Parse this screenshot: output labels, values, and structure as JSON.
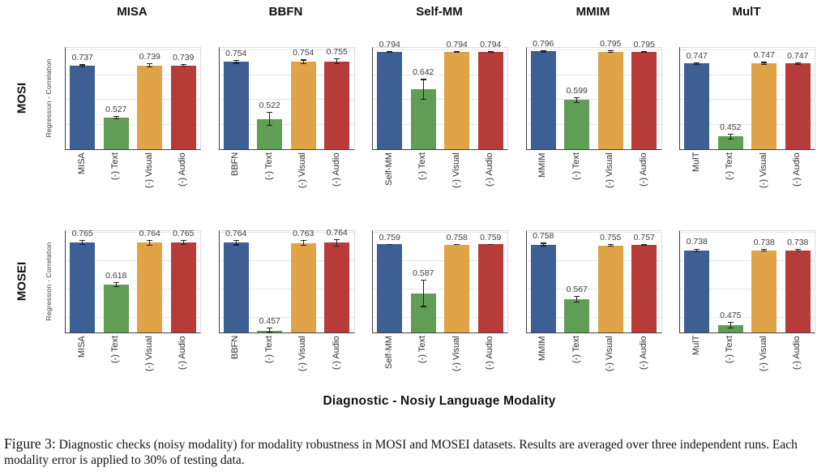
{
  "caption": {
    "label": "Figure 3:",
    "text": " Diagnostic checks (noisy modality) for modality robustness in MOSI and MOSEI datasets. Results are averaged over three independent runs. Each modality error is applied to 30% of testing data."
  },
  "colors": {
    "bar_blue": "#3d5f93",
    "bar_green": "#5f9e54",
    "bar_orange": "#e0a348",
    "bar_red": "#b73b39",
    "gridline": "#e7e7e7",
    "spine": "#404040",
    "value_label": "#3d3d3d",
    "tick_label": "#2e2e2e"
  },
  "chart_data": {
    "type": "bar",
    "xlabel": "Diagnostic - Nosiy Language Modality",
    "ylabel": "Regression - Correlation",
    "grid": true,
    "gridline_values": [
      0.5,
      0.6,
      0.7,
      0.8
    ],
    "legend_position": "none",
    "bar_colors": [
      "#3d5f93",
      "#5f9e54",
      "#e0a348",
      "#b73b39"
    ],
    "columns": [
      "MISA",
      "BBFN",
      "Self-MM",
      "MMIM",
      "MulT"
    ],
    "rows": [
      {
        "dataset": "MOSI",
        "ylim": [
          0.4,
          0.81
        ],
        "panels": [
          {
            "model": "MISA",
            "categories": [
              "MISA",
              "(-) Text",
              "(-) Visual",
              "(-) Audio"
            ],
            "values": [
              0.737,
              0.527,
              0.739,
              0.739
            ],
            "errors": [
              0.006,
              0.007,
              0.008,
              0.005
            ]
          },
          {
            "model": "BBFN",
            "categories": [
              "BBFN",
              "(-) Text",
              "(-) Visual",
              "(-) Audio"
            ],
            "values": [
              0.754,
              0.522,
              0.754,
              0.755
            ],
            "errors": [
              0.008,
              0.028,
              0.009,
              0.012
            ]
          },
          {
            "model": "Self-MM",
            "categories": [
              "Self-MM",
              "(-) Text",
              "(-) Visual",
              "(-) Audio"
            ],
            "values": [
              0.794,
              0.642,
              0.794,
              0.794
            ],
            "errors": [
              0.002,
              0.042,
              0.003,
              0.002
            ]
          },
          {
            "model": "MMIM",
            "categories": [
              "MMIM",
              "(-) Text",
              "(-) Visual",
              "(-) Audio"
            ],
            "values": [
              0.796,
              0.599,
              0.795,
              0.795
            ],
            "errors": [
              0.004,
              0.012,
              0.006,
              0.003
            ]
          },
          {
            "model": "MulT",
            "categories": [
              "MulT",
              "(-) Text",
              "(-) Visual",
              "(-) Audio"
            ],
            "values": [
              0.747,
              0.452,
              0.747,
              0.747
            ],
            "errors": [
              0.005,
              0.012,
              0.006,
              0.005
            ]
          }
        ]
      },
      {
        "dataset": "MOSEI",
        "ylim": [
          0.45,
          0.805
        ],
        "panels": [
          {
            "model": "MISA",
            "categories": [
              "MISA",
              "(-) Text",
              "(-) Visual",
              "(-) Audio"
            ],
            "values": [
              0.765,
              0.618,
              0.764,
              0.765
            ],
            "errors": [
              0.008,
              0.009,
              0.01,
              0.008
            ]
          },
          {
            "model": "BBFN",
            "categories": [
              "BBFN",
              "(-) Text",
              "(-) Visual",
              "(-) Audio"
            ],
            "values": [
              0.764,
              0.457,
              0.763,
              0.764
            ],
            "errors": [
              0.009,
              0.01,
              0.01,
              0.014
            ]
          },
          {
            "model": "Self-MM",
            "categories": [
              "Self-MM",
              "(-) Text",
              "(-) Visual",
              "(-) Audio"
            ],
            "values": [
              0.759,
              0.587,
              0.758,
              0.759
            ],
            "errors": [
              0.002,
              0.048,
              0.002,
              0.002
            ]
          },
          {
            "model": "MMIM",
            "categories": [
              "MMIM",
              "(-) Text",
              "(-) Visual",
              "(-) Audio"
            ],
            "values": [
              0.758,
              0.567,
              0.755,
              0.757
            ],
            "errors": [
              0.006,
              0.012,
              0.005,
              0.004
            ]
          },
          {
            "model": "MulT",
            "categories": [
              "MulT",
              "(-) Text",
              "(-) Visual",
              "(-) Audio"
            ],
            "values": [
              0.738,
              0.475,
              0.738,
              0.738
            ],
            "errors": [
              0.006,
              0.012,
              0.005,
              0.005
            ]
          }
        ]
      }
    ]
  }
}
